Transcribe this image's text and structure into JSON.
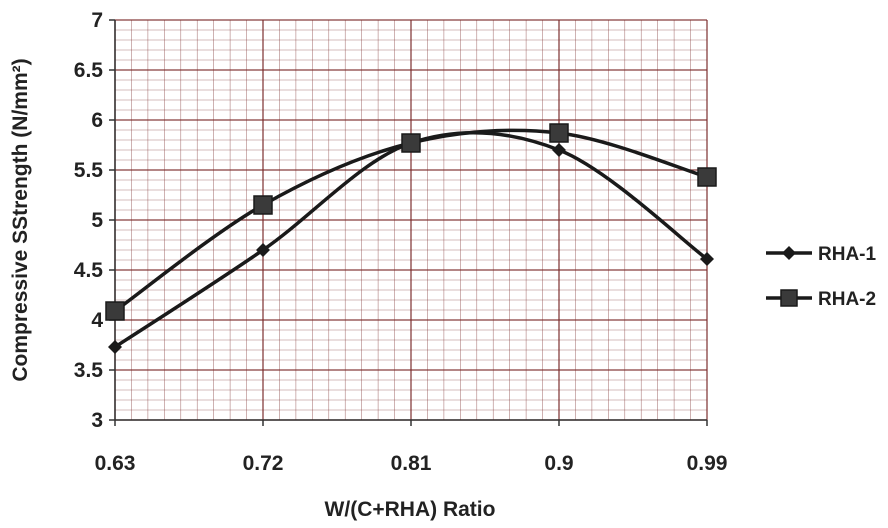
{
  "chart_data": {
    "type": "line",
    "title": "",
    "xlabel": "W/(C+RHA) Ratio",
    "ylabel": "Compressive SStrength (N/mm²)",
    "categories": [
      "0.63",
      "0.72",
      "0.81",
      "0.9",
      "0.99"
    ],
    "ylim": [
      3,
      7
    ],
    "yticks": [
      "3",
      "3.5",
      "4",
      "4.5",
      "5",
      "5.5",
      "6",
      "6.5",
      "7"
    ],
    "grid": true,
    "legend_position": "right",
    "series": [
      {
        "name": "RHA-1",
        "marker": "diamond",
        "values": [
          3.73,
          4.7,
          5.77,
          5.7,
          4.61
        ]
      },
      {
        "name": "RHA-2",
        "marker": "square",
        "values": [
          4.09,
          5.15,
          5.77,
          5.87,
          5.43
        ]
      }
    ],
    "colors": {
      "grid": "#7a2a2a",
      "line": "#1a1a1a",
      "axis": "#333333"
    }
  }
}
